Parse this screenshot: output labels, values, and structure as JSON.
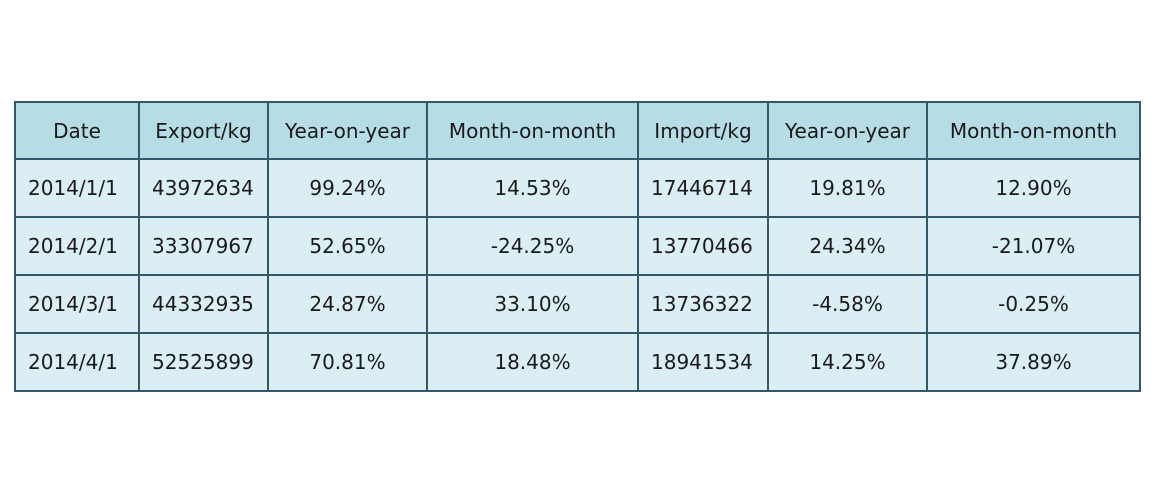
{
  "chart_data": {
    "type": "table",
    "columns": [
      "Date",
      "Export/kg",
      "Year-on-year",
      "Month-on-month",
      "Import/kg",
      "Year-on-year",
      "Month-on-month"
    ],
    "rows": [
      [
        "2014/1/1",
        "43972634",
        "99.24%",
        "14.53%",
        "17446714",
        "19.81%",
        "12.90%"
      ],
      [
        "2014/2/1",
        "33307967",
        "52.65%",
        "-24.25%",
        "13770466",
        "24.34%",
        "-21.07%"
      ],
      [
        "2014/3/1",
        "44332935",
        "24.87%",
        "33.10%",
        "13736322",
        "-4.58%",
        "-0.25%"
      ],
      [
        "2014/4/1",
        "52525899",
        "70.81%",
        "18.48%",
        "18941534",
        "14.25%",
        "37.89%"
      ]
    ]
  },
  "colors": {
    "header_bg": "#b6dce6",
    "cell_bg": "#daeef3",
    "border": "#31596a"
  }
}
